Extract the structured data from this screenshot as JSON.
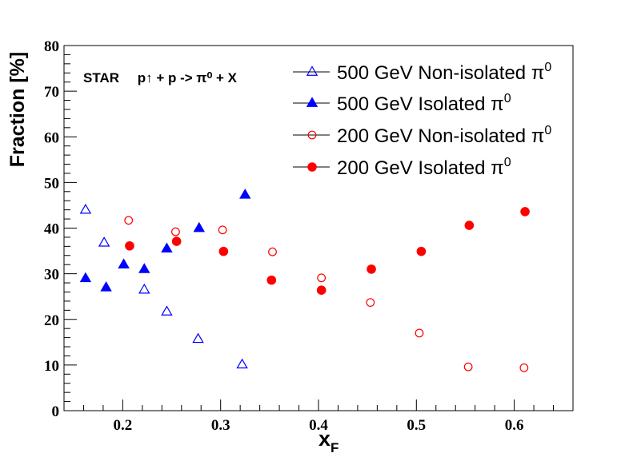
{
  "chart_data": {
    "type": "scatter",
    "title": "",
    "header": {
      "experiment": "STAR",
      "reaction": "p↑ + p -> π⁰ + X"
    },
    "xlabel": "x_F",
    "xlabel_main": "x",
    "xlabel_sub": "F",
    "ylabel": "Fraction [%]",
    "xlim": [
      0.14,
      0.66
    ],
    "ylim": [
      0,
      80
    ],
    "xticks": [
      0.2,
      0.3,
      0.4,
      0.5,
      0.6
    ],
    "xtick_labels": [
      "0.2",
      "0.3",
      "0.4",
      "0.5",
      "0.6"
    ],
    "yticks": [
      0,
      10,
      20,
      30,
      40,
      50,
      60,
      70,
      80
    ],
    "ytick_labels": [
      "0",
      "10",
      "20",
      "30",
      "40",
      "50",
      "60",
      "70",
      "80"
    ],
    "grid": false,
    "legend_position": "top-right",
    "series": [
      {
        "name": "500 GeV Non-isolated π⁰",
        "legend_text": "500 GeV Non-isolated π",
        "legend_sup": "0",
        "marker": "triangle-open",
        "color": "#0000ff",
        "x": [
          0.162,
          0.181,
          0.201,
          0.222,
          0.245,
          0.277,
          0.322
        ],
        "y": [
          44.0,
          36.8,
          32.0,
          26.5,
          21.7,
          15.7,
          10.1
        ]
      },
      {
        "name": "500 GeV Isolated π⁰",
        "legend_text": "500 GeV Isolated π",
        "legend_sup": "0",
        "marker": "triangle-filled",
        "color": "#0000ff",
        "x": [
          0.162,
          0.183,
          0.201,
          0.222,
          0.245,
          0.278,
          0.325
        ],
        "y": [
          29.0,
          27.0,
          32.0,
          31.0,
          35.5,
          40.0,
          47.3
        ]
      },
      {
        "name": "200 GeV Non-isolated π⁰",
        "legend_text": "200 GeV Non-isolated π",
        "legend_sup": "0",
        "marker": "circle-open",
        "color": "#ff0000",
        "x": [
          0.206,
          0.254,
          0.302,
          0.353,
          0.403,
          0.453,
          0.503,
          0.553,
          0.61
        ],
        "y": [
          41.7,
          39.2,
          39.6,
          34.8,
          29.1,
          23.7,
          17.0,
          9.6,
          9.4
        ]
      },
      {
        "name": "200 GeV Isolated π⁰",
        "legend_text": "200 GeV Isolated π",
        "legend_sup": "0",
        "marker": "circle-filled",
        "color": "#ff0000",
        "x": [
          0.207,
          0.255,
          0.303,
          0.352,
          0.403,
          0.454,
          0.505,
          0.554,
          0.611
        ],
        "y": [
          36.1,
          37.1,
          34.9,
          28.6,
          26.4,
          31.0,
          34.9,
          40.6,
          43.6
        ]
      }
    ]
  }
}
